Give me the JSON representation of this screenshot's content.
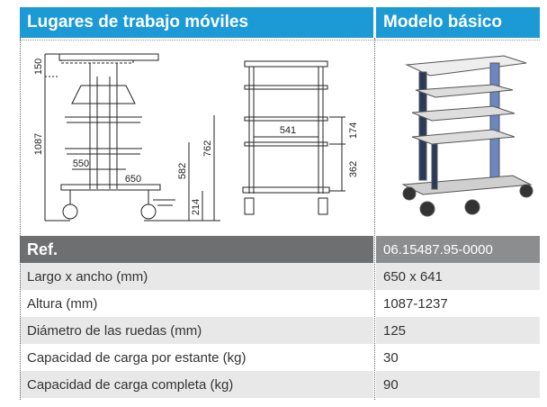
{
  "header": {
    "title": "Lugares de trabajo móviles",
    "model": "Modelo básico"
  },
  "drawing": {
    "dimensions": [
      "150",
      "1087",
      "550",
      "650",
      "582",
      "762",
      "214",
      "541",
      "174",
      "362"
    ]
  },
  "table": {
    "header": [
      "Ref.",
      "06.15487.95-0000"
    ],
    "rows": [
      [
        "Largo x ancho (mm)",
        "650 x 641"
      ],
      [
        "Altura (mm)",
        "1087-1237"
      ],
      [
        "Diámetro de las ruedas (mm)",
        "125"
      ],
      [
        "Capacidad de carga por estante (kg)",
        "30"
      ],
      [
        "Capacidad de carga completa (kg)",
        "90"
      ]
    ]
  }
}
